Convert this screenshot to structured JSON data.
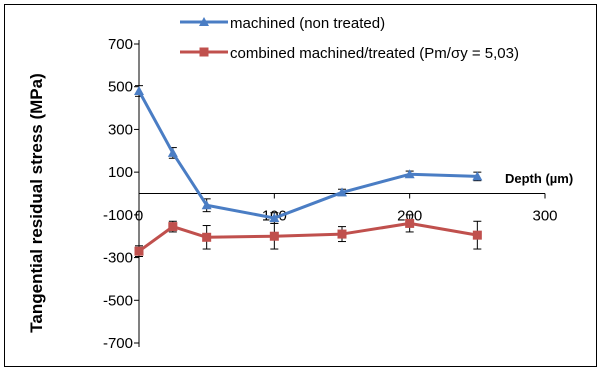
{
  "chart_data": {
    "type": "line",
    "title": "",
    "xlabel": "Depth (µm)",
    "ylabel": "Tangential residual stress (MPa)",
    "xlim": [
      0,
      300
    ],
    "ylim": [
      -800,
      800
    ],
    "xticks": [
      0,
      100,
      200,
      300
    ],
    "xtick_labels": [
      "0",
      "100",
      "200",
      "300"
    ],
    "yticks": [
      700,
      500,
      300,
      100,
      -100,
      -300,
      -500,
      -700
    ],
    "ytick_labels": [
      "700",
      "500",
      "300",
      "100",
      "-100",
      "-300",
      "-500",
      "-700"
    ],
    "grid": false,
    "legend_position": "top",
    "series": [
      {
        "name": "machined (non treated)",
        "color": "#4a7dc4",
        "marker": "triangle",
        "x": [
          0,
          25,
          50,
          100,
          150,
          200,
          250
        ],
        "y": [
          480,
          190,
          -55,
          -115,
          5,
          90,
          80
        ],
        "err": [
          25,
          25,
          30,
          25,
          15,
          15,
          20
        ]
      },
      {
        "name": "combined machined/treated (Pm/σy = 5,03)",
        "color": "#c0504d",
        "marker": "square",
        "x": [
          0,
          25,
          50,
          100,
          150,
          200,
          250
        ],
        "y": [
          -270,
          -155,
          -205,
          -200,
          -190,
          -140,
          -195
        ],
        "err": [
          25,
          25,
          55,
          60,
          35,
          40,
          65
        ]
      }
    ]
  }
}
